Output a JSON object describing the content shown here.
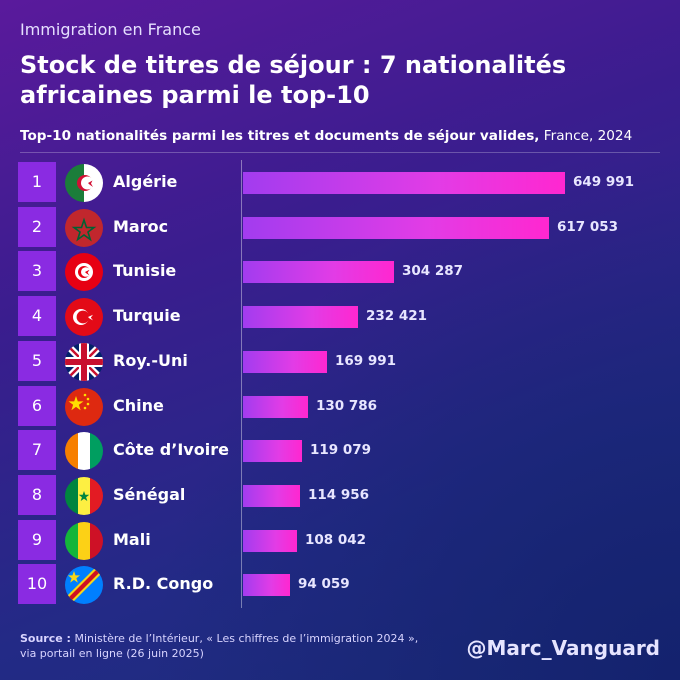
{
  "header": {
    "kicker": "Immigration en France",
    "title": "Stock de titres de séjour : 7 nationalités africaines parmi le top-10",
    "subtitle_bold": "Top-10 nationalités parmi les titres et documents de séjour valides,",
    "subtitle_light": " France, 2024"
  },
  "chart_data": {
    "type": "bar",
    "orientation": "horizontal",
    "title": "Top-10 nationalités parmi les titres et documents de séjour valides, France, 2024",
    "categories": [
      "Algérie",
      "Maroc",
      "Tunisie",
      "Turquie",
      "Roy.-Uni",
      "Chine",
      "Côte d’Ivoire",
      "Sénégal",
      "Mali",
      "R.D. Congo"
    ],
    "ranks": [
      "1",
      "2",
      "3",
      "4",
      "5",
      "6",
      "7",
      "8",
      "9",
      "10"
    ],
    "values": [
      649991,
      617053,
      304287,
      232421,
      169991,
      130786,
      119079,
      114956,
      108042,
      94059
    ],
    "value_labels": [
      "649 991",
      "617 053",
      "304 287",
      "232 421",
      "169 991",
      "130 786",
      "119 079",
      "114 956",
      "108 042",
      "94 059"
    ],
    "flags": [
      "algeria-flag-icon",
      "morocco-flag-icon",
      "tunisia-flag-icon",
      "turkey-flag-icon",
      "uk-flag-icon",
      "china-flag-icon",
      "ivory-coast-flag-icon",
      "senegal-flag-icon",
      "mali-flag-icon",
      "drc-flag-icon"
    ],
    "xlim": [
      0,
      680000
    ],
    "grid": false,
    "legend": "none"
  },
  "footer": {
    "source_label": "Source :",
    "source_text": " Ministère de l’Intérieur, « Les chiffres de l’immigration 2024 », via portail en ligne  (26 juin 2025)",
    "handle": "@Marc_Vanguard"
  },
  "colors": {
    "rank_box": "#8a2be2",
    "bar_start": "#a23cef",
    "bar_end": "#ff27d0"
  }
}
